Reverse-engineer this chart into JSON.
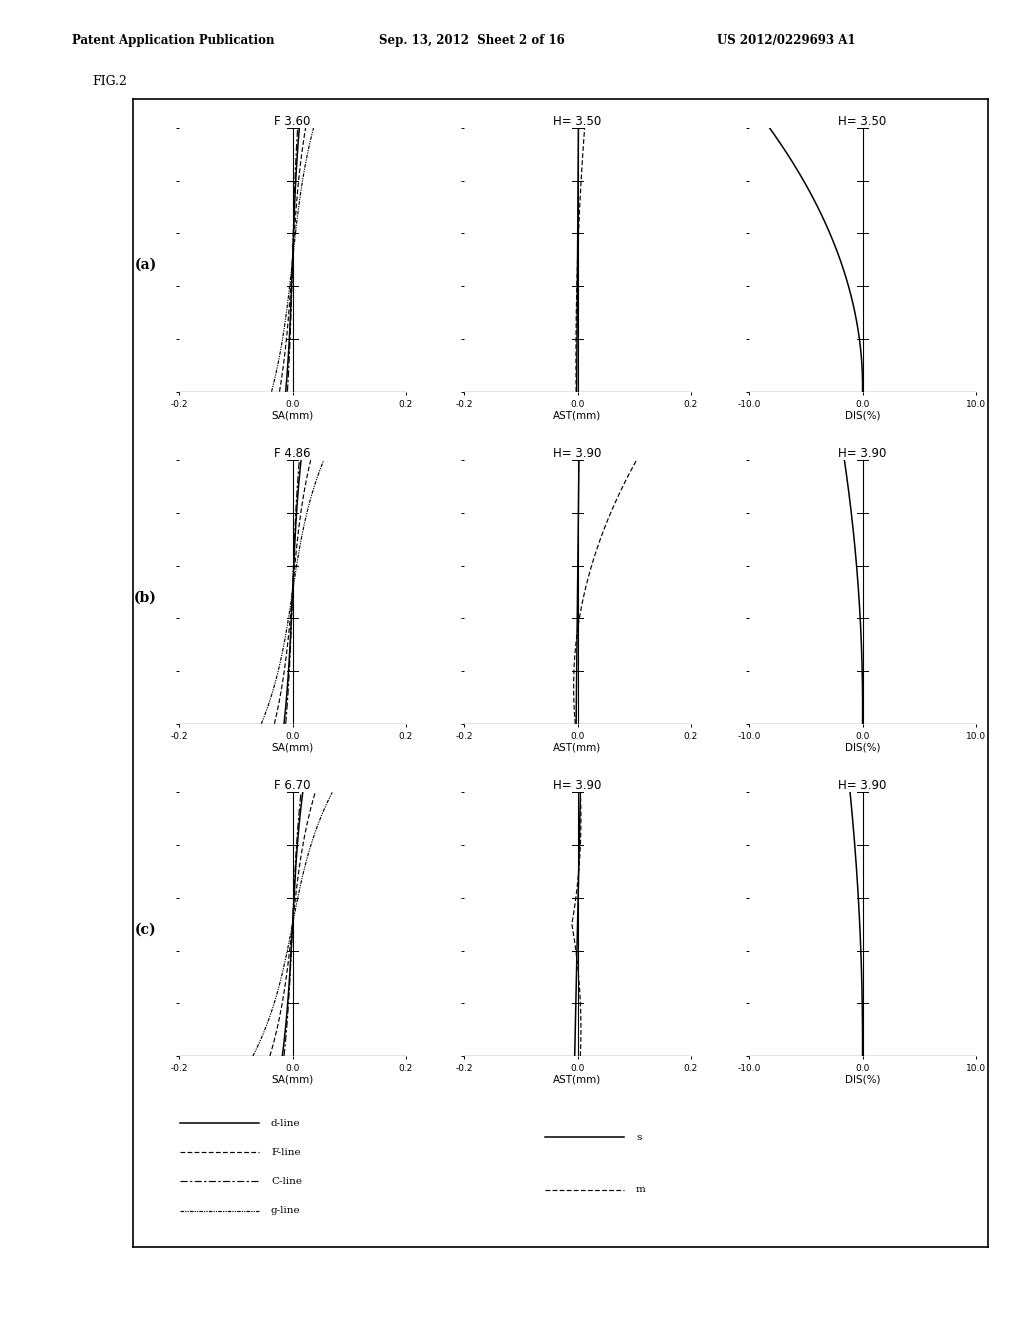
{
  "header_left": "Patent Application Publication",
  "header_mid": "Sep. 13, 2012  Sheet 2 of 16",
  "header_right": "US 2012/0229693 A1",
  "fig_label": "FIG.2",
  "rows": [
    {
      "row_label": "(a)",
      "sa_title": "F 3.60",
      "ast_title": "H= 3.50",
      "dis_title": "H= 3.50"
    },
    {
      "row_label": "(b)",
      "sa_title": "F 4.86",
      "ast_title": "H= 3.90",
      "dis_title": "H= 3.90"
    },
    {
      "row_label": "(c)",
      "sa_title": "F 6.70",
      "ast_title": "H= 3.90",
      "dis_title": "H= 3.90"
    }
  ],
  "xlim_sa": [
    -0.2,
    0.2
  ],
  "xlim_ast": [
    -0.2,
    0.2
  ],
  "xlim_dis": [
    -10.0,
    10.0
  ],
  "xticks_sa": [
    -0.2,
    0.0,
    0.2
  ],
  "xticks_ast": [
    -0.2,
    0.0,
    0.2
  ],
  "xticks_dis": [
    -10.0,
    0.0,
    10.0
  ],
  "xlabel_sa": "SA(mm)",
  "xlabel_ast": "AST(mm)",
  "xlabel_dis": "DIS(%)",
  "ylim": [
    0.0,
    1.0
  ],
  "yticks": [
    0.0,
    0.2,
    0.4,
    0.6,
    0.8,
    1.0
  ],
  "background": "#ffffff"
}
